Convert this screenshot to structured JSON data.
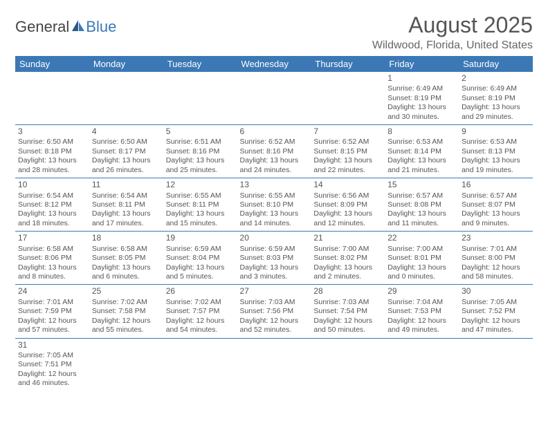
{
  "logo": {
    "text1": "General",
    "text2": "Blue"
  },
  "title": "August 2025",
  "location": "Wildwood, Florida, United States",
  "colors": {
    "header_bg": "#3b78b5",
    "header_fg": "#ffffff",
    "border": "#3b78b5",
    "text": "#555555"
  },
  "weekdays": [
    "Sunday",
    "Monday",
    "Tuesday",
    "Wednesday",
    "Thursday",
    "Friday",
    "Saturday"
  ],
  "weeks": [
    [
      null,
      null,
      null,
      null,
      null,
      {
        "d": "1",
        "sr": "6:49 AM",
        "ss": "8:19 PM",
        "dl": "13 hours and 30 minutes."
      },
      {
        "d": "2",
        "sr": "6:49 AM",
        "ss": "8:19 PM",
        "dl": "13 hours and 29 minutes."
      }
    ],
    [
      {
        "d": "3",
        "sr": "6:50 AM",
        "ss": "8:18 PM",
        "dl": "13 hours and 28 minutes."
      },
      {
        "d": "4",
        "sr": "6:50 AM",
        "ss": "8:17 PM",
        "dl": "13 hours and 26 minutes."
      },
      {
        "d": "5",
        "sr": "6:51 AM",
        "ss": "8:16 PM",
        "dl": "13 hours and 25 minutes."
      },
      {
        "d": "6",
        "sr": "6:52 AM",
        "ss": "8:16 PM",
        "dl": "13 hours and 24 minutes."
      },
      {
        "d": "7",
        "sr": "6:52 AM",
        "ss": "8:15 PM",
        "dl": "13 hours and 22 minutes."
      },
      {
        "d": "8",
        "sr": "6:53 AM",
        "ss": "8:14 PM",
        "dl": "13 hours and 21 minutes."
      },
      {
        "d": "9",
        "sr": "6:53 AM",
        "ss": "8:13 PM",
        "dl": "13 hours and 19 minutes."
      }
    ],
    [
      {
        "d": "10",
        "sr": "6:54 AM",
        "ss": "8:12 PM",
        "dl": "13 hours and 18 minutes."
      },
      {
        "d": "11",
        "sr": "6:54 AM",
        "ss": "8:11 PM",
        "dl": "13 hours and 17 minutes."
      },
      {
        "d": "12",
        "sr": "6:55 AM",
        "ss": "8:11 PM",
        "dl": "13 hours and 15 minutes."
      },
      {
        "d": "13",
        "sr": "6:55 AM",
        "ss": "8:10 PM",
        "dl": "13 hours and 14 minutes."
      },
      {
        "d": "14",
        "sr": "6:56 AM",
        "ss": "8:09 PM",
        "dl": "13 hours and 12 minutes."
      },
      {
        "d": "15",
        "sr": "6:57 AM",
        "ss": "8:08 PM",
        "dl": "13 hours and 11 minutes."
      },
      {
        "d": "16",
        "sr": "6:57 AM",
        "ss": "8:07 PM",
        "dl": "13 hours and 9 minutes."
      }
    ],
    [
      {
        "d": "17",
        "sr": "6:58 AM",
        "ss": "8:06 PM",
        "dl": "13 hours and 8 minutes."
      },
      {
        "d": "18",
        "sr": "6:58 AM",
        "ss": "8:05 PM",
        "dl": "13 hours and 6 minutes."
      },
      {
        "d": "19",
        "sr": "6:59 AM",
        "ss": "8:04 PM",
        "dl": "13 hours and 5 minutes."
      },
      {
        "d": "20",
        "sr": "6:59 AM",
        "ss": "8:03 PM",
        "dl": "13 hours and 3 minutes."
      },
      {
        "d": "21",
        "sr": "7:00 AM",
        "ss": "8:02 PM",
        "dl": "13 hours and 2 minutes."
      },
      {
        "d": "22",
        "sr": "7:00 AM",
        "ss": "8:01 PM",
        "dl": "13 hours and 0 minutes."
      },
      {
        "d": "23",
        "sr": "7:01 AM",
        "ss": "8:00 PM",
        "dl": "12 hours and 58 minutes."
      }
    ],
    [
      {
        "d": "24",
        "sr": "7:01 AM",
        "ss": "7:59 PM",
        "dl": "12 hours and 57 minutes."
      },
      {
        "d": "25",
        "sr": "7:02 AM",
        "ss": "7:58 PM",
        "dl": "12 hours and 55 minutes."
      },
      {
        "d": "26",
        "sr": "7:02 AM",
        "ss": "7:57 PM",
        "dl": "12 hours and 54 minutes."
      },
      {
        "d": "27",
        "sr": "7:03 AM",
        "ss": "7:56 PM",
        "dl": "12 hours and 52 minutes."
      },
      {
        "d": "28",
        "sr": "7:03 AM",
        "ss": "7:54 PM",
        "dl": "12 hours and 50 minutes."
      },
      {
        "d": "29",
        "sr": "7:04 AM",
        "ss": "7:53 PM",
        "dl": "12 hours and 49 minutes."
      },
      {
        "d": "30",
        "sr": "7:05 AM",
        "ss": "7:52 PM",
        "dl": "12 hours and 47 minutes."
      }
    ],
    [
      {
        "d": "31",
        "sr": "7:05 AM",
        "ss": "7:51 PM",
        "dl": "12 hours and 46 minutes."
      },
      null,
      null,
      null,
      null,
      null,
      null
    ]
  ]
}
